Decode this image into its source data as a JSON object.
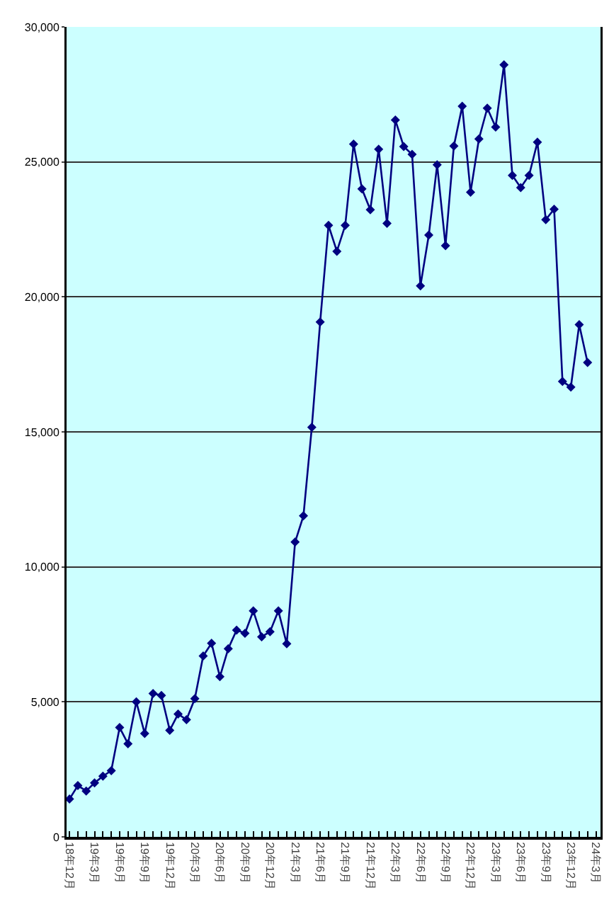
{
  "chart_data": {
    "type": "line",
    "categories": [
      "18年12月",
      null,
      null,
      "19年3月",
      null,
      null,
      "19年6月",
      null,
      null,
      "19年9月",
      null,
      null,
      "19年12月",
      null,
      null,
      "20年3月",
      null,
      null,
      "20年6月",
      null,
      null,
      "20年9月",
      null,
      null,
      "20年12月",
      null,
      null,
      "21年3月",
      null,
      null,
      "21年6月",
      null,
      null,
      "21年9月",
      null,
      null,
      "21年12月",
      null,
      null,
      "22年3月",
      null,
      null,
      "22年6月",
      null,
      null,
      "22年9月",
      null,
      null,
      "22年12月",
      null,
      null,
      "23年3月",
      null,
      null,
      "23年6月",
      null,
      null,
      "23年9月",
      null,
      null,
      "23年12月",
      null,
      null,
      "24年3月"
    ],
    "series": [
      {
        "color": "#000080",
        "values": [
          1400,
          1900,
          1700,
          2000,
          2250,
          2450,
          4050,
          3450,
          5000,
          3830,
          5310,
          5240,
          3950,
          4550,
          4340,
          5120,
          6700,
          7170,
          5930,
          6970,
          7660,
          7540,
          8370,
          7410,
          7600,
          8370,
          7150,
          10920,
          11890,
          15170,
          19070,
          22650,
          21690,
          22650,
          25660,
          24000,
          23230,
          25470,
          22720,
          26550,
          25570,
          25280,
          20410,
          22290,
          24890,
          21900,
          25590,
          27060,
          23880,
          25850,
          26990,
          26290,
          28600,
          24500,
          24050,
          24500,
          25730,
          22860,
          23250,
          16870,
          16660,
          18970,
          17570,
          null
        ]
      }
    ],
    "ylim": [
      0,
      30000
    ],
    "yticks": [
      0,
      {
        "value": 5000,
        "label": "5,000"
      },
      {
        "value": 10000,
        "label": "10,000"
      },
      {
        "value": 15000,
        "label": "15,000"
      },
      {
        "value": 20000,
        "label": "20,000"
      },
      {
        "value": 25000,
        "label": "25,000"
      },
      {
        "value": 30000,
        "label": "30,000"
      }
    ],
    "grid": "y",
    "marker": "diamond",
    "line_style": "solid"
  }
}
